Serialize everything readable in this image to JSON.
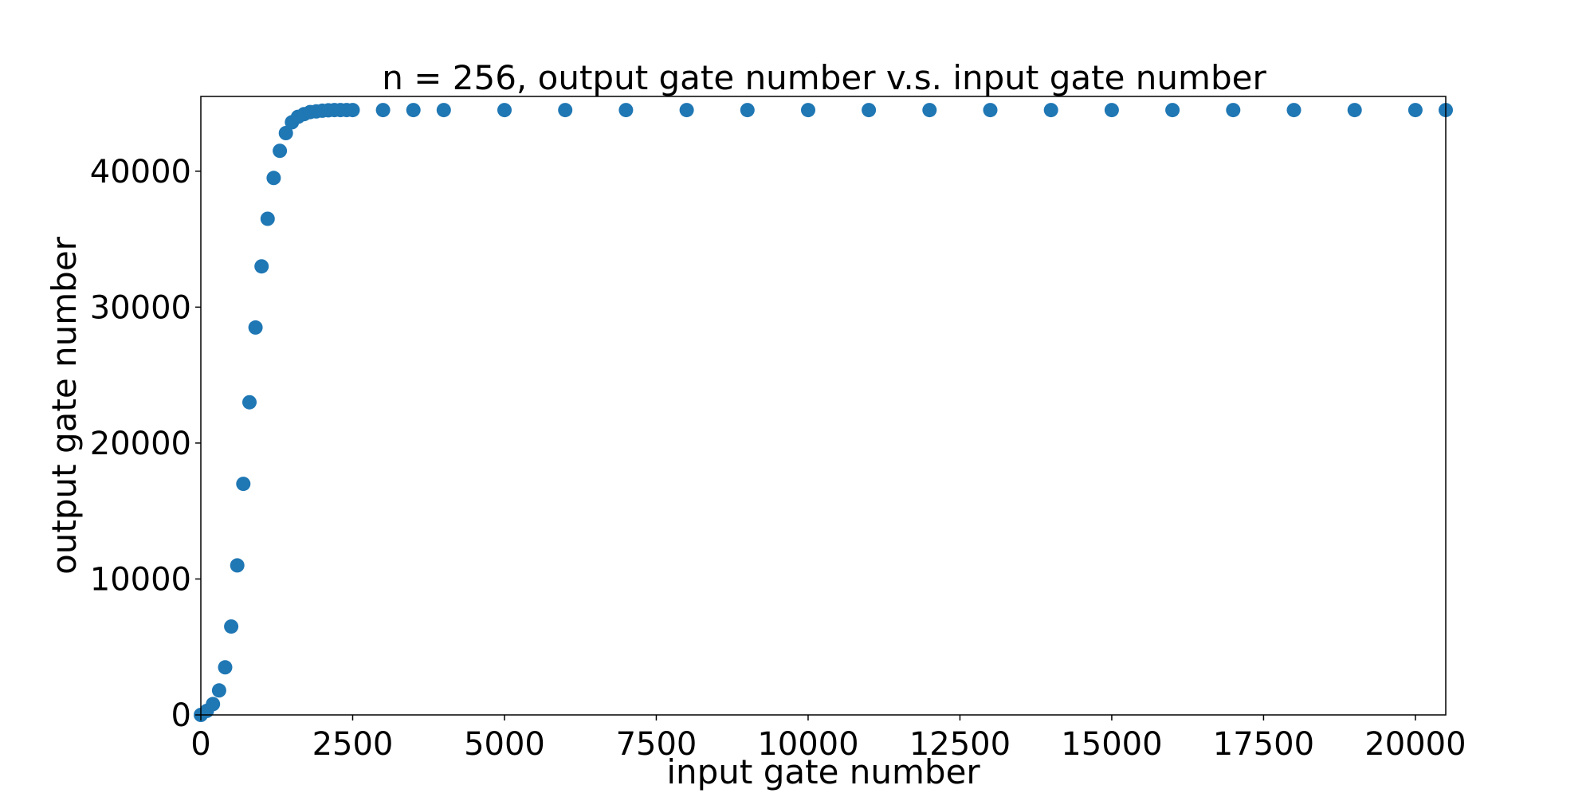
{
  "chart_data": {
    "type": "scatter",
    "title": "n = 256, output gate number v.s. input gate number",
    "xlabel": "input gate number",
    "ylabel": "output gate number",
    "xlim": [
      0,
      20500
    ],
    "ylim": [
      0,
      45500
    ],
    "grid": false,
    "legend": "none",
    "x_ticks": [
      {
        "value": 0,
        "label": "0"
      },
      {
        "value": 2500,
        "label": "2500"
      },
      {
        "value": 5000,
        "label": "5000"
      },
      {
        "value": 7500,
        "label": "7500"
      },
      {
        "value": 10000,
        "label": "10000"
      },
      {
        "value": 12500,
        "label": "12500"
      },
      {
        "value": 15000,
        "label": "15000"
      },
      {
        "value": 17500,
        "label": "17500"
      },
      {
        "value": 20000,
        "label": "20000"
      }
    ],
    "y_ticks": [
      {
        "value": 0,
        "label": "0"
      },
      {
        "value": 10000,
        "label": "10000"
      },
      {
        "value": 20000,
        "label": "20000"
      },
      {
        "value": 30000,
        "label": "30000"
      },
      {
        "value": 40000,
        "label": "40000"
      }
    ],
    "series": [
      {
        "color": "#1f77b4",
        "x": [
          0,
          100,
          200,
          300,
          400,
          500,
          600,
          700,
          800,
          900,
          1000,
          1100,
          1200,
          1300,
          1400,
          1500,
          1600,
          1700,
          1800,
          1900,
          2000,
          2100,
          2200,
          2300,
          2400,
          2500,
          3000,
          3500,
          4000,
          5000,
          6000,
          7000,
          8000,
          9000,
          10000,
          11000,
          12000,
          13000,
          14000,
          15000,
          16000,
          17000,
          18000,
          19000,
          20000,
          20500
        ],
        "y": [
          0,
          300,
          800,
          1800,
          3500,
          6500,
          11000,
          17000,
          23000,
          28500,
          33000,
          36500,
          39500,
          41500,
          42800,
          43600,
          44000,
          44200,
          44350,
          44400,
          44450,
          44480,
          44500,
          44500,
          44500,
          44500,
          44500,
          44500,
          44500,
          44500,
          44500,
          44500,
          44500,
          44500,
          44500,
          44500,
          44500,
          44500,
          44500,
          44500,
          44500,
          44500,
          44500,
          44500,
          44500,
          44500
        ]
      }
    ]
  }
}
